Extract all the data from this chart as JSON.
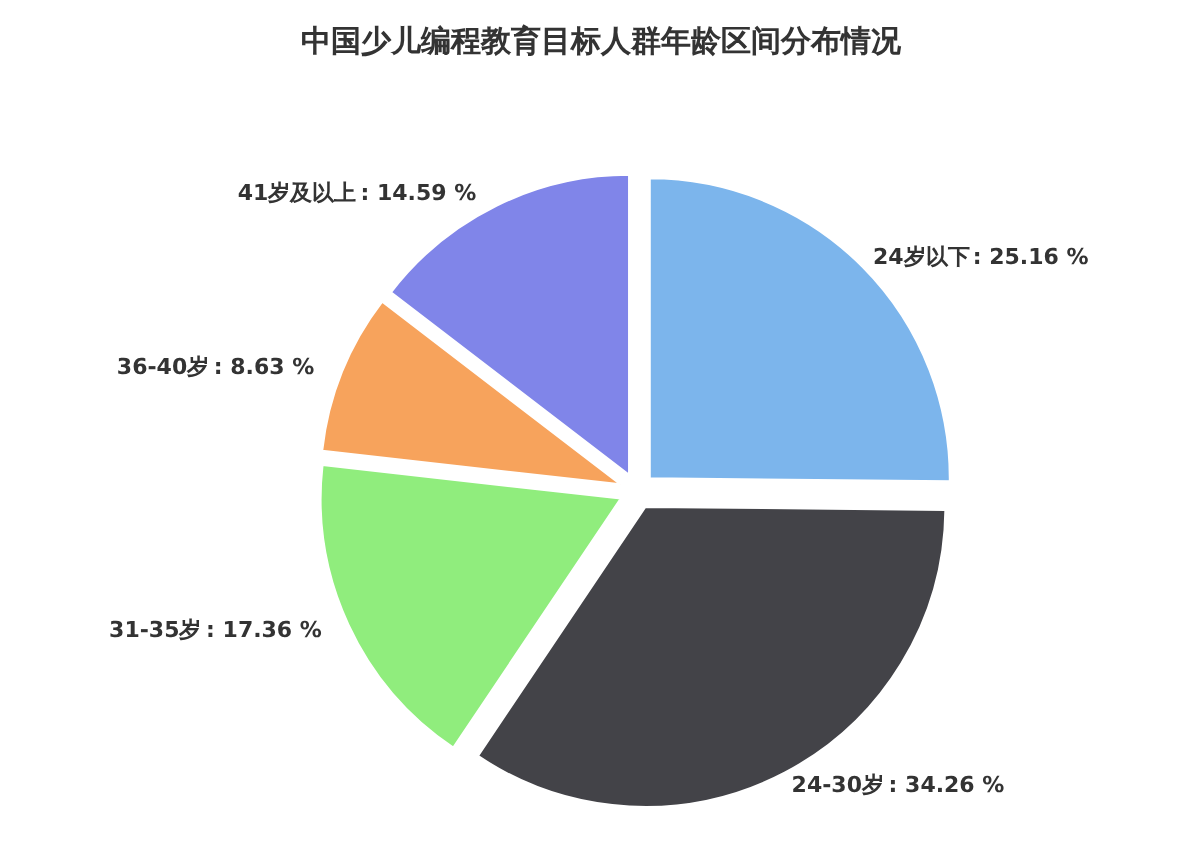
{
  "chart_data": {
    "type": "pie",
    "title": "中国少儿编程教育目标人群年龄区间分布情况",
    "categories": [
      "24岁以下",
      "24-30岁",
      "31-35岁",
      "36-40岁",
      "41岁及以上"
    ],
    "values": [
      25.16,
      34.26,
      17.36,
      8.63,
      14.59
    ],
    "colors": [
      "#7cb5ec",
      "#434348",
      "#90ed7d",
      "#f7a35c",
      "#8085e9"
    ],
    "value_labels": [
      ": 25.16 %",
      ": 34.26 %",
      ": 17.36 %",
      ": 8.63 %",
      ": 14.59 %"
    ]
  }
}
